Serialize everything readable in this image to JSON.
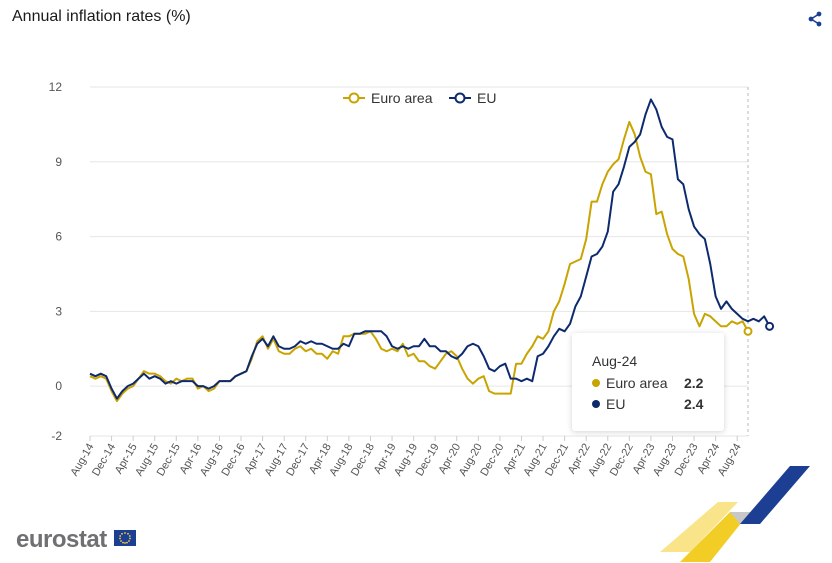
{
  "header": {
    "title": "Annual inflation rates (%)",
    "share_icon": "share-icon"
  },
  "logo": {
    "text": "eurostat",
    "flag_icon": "eu-flag-icon"
  },
  "tooltip": {
    "date": "Aug-24",
    "rows": [
      {
        "name": "Euro area",
        "value": "2.2",
        "color": "#c9a400"
      },
      {
        "name": "EU",
        "value": "2.4",
        "color": "#0e2a6e"
      }
    ]
  },
  "chart_data": {
    "type": "line",
    "title": "Annual inflation rates (%)",
    "xlabel": "",
    "ylabel": "",
    "ylim": [
      -2,
      12
    ],
    "yticks": [
      -2,
      0,
      3,
      6,
      9,
      12
    ],
    "grid": true,
    "legend": "top-center",
    "xtick_labels": [
      "Aug-14",
      "Dec-14",
      "Apr-15",
      "Aug-15",
      "Dec-15",
      "Apr-16",
      "Aug-16",
      "Dec-16",
      "Apr-17",
      "Aug-17",
      "Dec-17",
      "Apr-18",
      "Aug-18",
      "Dec-18",
      "Apr-19",
      "Aug-19",
      "Dec-19",
      "Apr-20",
      "Aug-20",
      "Dec-20",
      "Apr-21",
      "Aug-21",
      "Dec-21",
      "Apr-22",
      "Aug-22",
      "Dec-22",
      "Apr-23",
      "Aug-23",
      "Dec-23",
      "Apr-24",
      "Aug-24"
    ],
    "x_start": "Aug-14",
    "x_end": "Aug-24",
    "series": [
      {
        "name": "Euro area",
        "color": "#c9a400",
        "values": [
          0.4,
          0.3,
          0.4,
          0.3,
          -0.2,
          -0.6,
          -0.3,
          -0.1,
          0.0,
          0.3,
          0.6,
          0.5,
          0.5,
          0.4,
          0.2,
          0.1,
          0.3,
          0.2,
          0.3,
          0.3,
          -0.1,
          0.0,
          -0.2,
          -0.1,
          0.2,
          0.2,
          0.2,
          0.4,
          0.5,
          0.6,
          1.1,
          1.8,
          2.0,
          1.5,
          1.9,
          1.4,
          1.3,
          1.3,
          1.5,
          1.6,
          1.4,
          1.5,
          1.3,
          1.3,
          1.1,
          1.4,
          1.3,
          2.0,
          2.0,
          2.1,
          2.1,
          2.1,
          2.2,
          1.9,
          1.5,
          1.4,
          1.5,
          1.4,
          1.7,
          1.2,
          1.3,
          1.0,
          1.0,
          0.8,
          0.7,
          1.0,
          1.3,
          1.4,
          1.2,
          0.7,
          0.3,
          0.1,
          0.3,
          0.4,
          -0.2,
          -0.3,
          -0.3,
          -0.3,
          -0.3,
          0.9,
          0.9,
          1.3,
          1.6,
          2.0,
          1.9,
          2.2,
          3.0,
          3.4,
          4.1,
          4.9,
          5.0,
          5.1,
          5.9,
          7.4,
          7.4,
          8.1,
          8.6,
          8.9,
          9.1,
          9.9,
          10.6,
          10.1,
          9.2,
          8.6,
          8.5,
          6.9,
          7.0,
          6.1,
          5.5,
          5.3,
          5.2,
          4.3,
          2.9,
          2.4,
          2.9,
          2.8,
          2.6,
          2.4,
          2.4,
          2.6,
          2.5,
          2.6,
          2.2
        ]
      },
      {
        "name": "EU",
        "color": "#0e2a6e",
        "values": [
          0.5,
          0.4,
          0.5,
          0.4,
          -0.1,
          -0.5,
          -0.2,
          0.0,
          0.1,
          0.3,
          0.5,
          0.3,
          0.4,
          0.3,
          0.1,
          0.2,
          0.1,
          0.2,
          0.2,
          0.2,
          0.0,
          0.0,
          -0.1,
          0.0,
          0.2,
          0.2,
          0.2,
          0.4,
          0.5,
          0.6,
          1.2,
          1.7,
          1.9,
          1.6,
          2.0,
          1.6,
          1.5,
          1.5,
          1.6,
          1.8,
          1.7,
          1.8,
          1.7,
          1.7,
          1.6,
          1.5,
          1.5,
          1.7,
          1.6,
          2.1,
          2.1,
          2.2,
          2.2,
          2.2,
          2.2,
          2.0,
          1.6,
          1.5,
          1.6,
          1.5,
          1.6,
          1.6,
          1.9,
          1.6,
          1.6,
          1.4,
          1.4,
          1.2,
          1.1,
          1.3,
          1.6,
          1.7,
          1.6,
          1.2,
          0.7,
          0.6,
          0.8,
          0.9,
          0.3,
          0.3,
          0.2,
          0.3,
          0.2,
          1.2,
          1.3,
          1.6,
          2.0,
          2.3,
          2.2,
          2.5,
          3.2,
          3.6,
          4.4,
          5.2,
          5.3,
          5.6,
          6.2,
          7.8,
          8.1,
          8.8,
          9.6,
          9.8,
          10.1,
          10.9,
          11.5,
          11.1,
          10.4,
          10.0,
          9.9,
          8.3,
          8.1,
          7.1,
          6.4,
          6.1,
          5.9,
          4.9,
          3.6,
          3.1,
          3.4,
          3.1,
          2.9,
          2.7,
          2.6,
          2.7,
          2.6,
          2.8,
          2.4
        ]
      }
    ]
  }
}
